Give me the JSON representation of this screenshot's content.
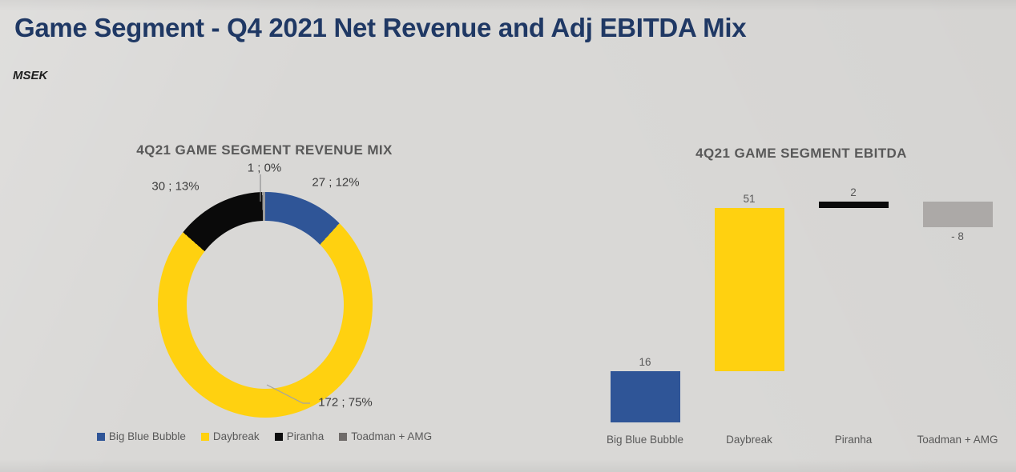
{
  "header": {
    "title": "Game Segment - Q4 2021 Net Revenue and Adj EBITDA Mix",
    "unit_label": "MSEK"
  },
  "colors": {
    "title_navy": "#1F3864",
    "chart_title_gray": "#595959",
    "background_gray": "#d9d8d6"
  },
  "chart_data": [
    {
      "type": "pie",
      "subtype": "donut",
      "title": "4Q21 GAME SEGMENT REVENUE MIX",
      "categories": [
        "Big Blue Bubble",
        "Daybreak",
        "Piranha",
        "Toadman + AMG"
      ],
      "values": [
        27,
        172,
        30,
        1
      ],
      "percentages": [
        12,
        75,
        13,
        0
      ],
      "data_labels": [
        "27 ; 12%",
        "172 ; 75%",
        "30 ; 13%",
        "1 ; 0%"
      ],
      "colors": [
        "#2F5597",
        "#FFD110",
        "#0A0A0A",
        "#9C9C9C"
      ],
      "legend_colors": [
        "#2F5597",
        "#FFD110",
        "#0D0D0D",
        "#6F6B69"
      ],
      "legend_position": "bottom",
      "start_angle_deg": 0,
      "direction": "clockwise"
    },
    {
      "type": "bar",
      "subtype": "waterfall",
      "title": "4Q21 GAME SEGMENT EBITDA",
      "categories": [
        "Big Blue Bubble",
        "Daybreak",
        "Piranha",
        "Toadman + AMG"
      ],
      "values": [
        16,
        51,
        2,
        -8
      ],
      "data_labels": [
        "16",
        "51",
        "2",
        "- 8"
      ],
      "colors": [
        "#2F5597",
        "#FFD110",
        "#0A0A0A",
        "#ACA9A7"
      ],
      "cumulative_levels": [
        0,
        16,
        67,
        69,
        61
      ],
      "ylim": [
        0,
        69
      ],
      "grid": false,
      "legend_position": "none"
    }
  ]
}
